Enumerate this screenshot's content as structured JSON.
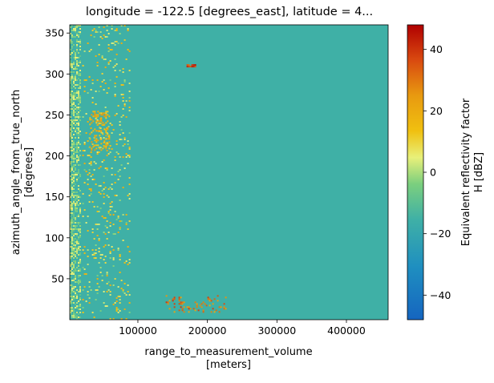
{
  "chart_data": {
    "type": "heatmap",
    "title": "longitude = -122.5 [degrees_east], latitude = 4...",
    "x_axis": {
      "label_lines": [
        "range_to_measurement_volume",
        "[meters]"
      ],
      "range": [
        2000,
        460000
      ],
      "ticks": [
        100000,
        200000,
        300000,
        400000
      ],
      "tick_labels": [
        "100000",
        "200000",
        "300000",
        "400000"
      ]
    },
    "y_axis": {
      "label_lines": [
        "azimuth_angle_from_true_north",
        "[degrees]"
      ],
      "range": [
        0,
        360
      ],
      "ticks": [
        50,
        100,
        150,
        200,
        250,
        300,
        350
      ],
      "tick_labels": [
        "50",
        "100",
        "150",
        "200",
        "250",
        "300",
        "350"
      ]
    },
    "colorbar": {
      "label_lines": [
        "Equivalent reflectivity factor",
        "H [dBZ]"
      ],
      "range": [
        -48,
        48
      ],
      "ticks": [
        -40,
        -20,
        0,
        20,
        40
      ],
      "tick_labels": [
        "−40",
        "−20",
        "0",
        "20",
        "40"
      ],
      "colormap": "jet-like (blue → teal → yellow → orange → red)"
    },
    "background_value_dbz": -35,
    "regions": [
      {
        "desc": "near-range clutter band",
        "x_range": [
          2000,
          20000
        ],
        "y_range": [
          0,
          360
        ],
        "typical_dbz": [
          -10,
          5
        ]
      },
      {
        "desc": "scattered echoes",
        "x_range": [
          20000,
          90000
        ],
        "y_range": [
          0,
          360
        ],
        "typical_dbz": [
          -5,
          20
        ]
      },
      {
        "desc": "strong cell near 200-250 deg",
        "x_range": [
          30000,
          60000
        ],
        "y_range": [
          205,
          255
        ],
        "typical_dbz": [
          10,
          25
        ]
      },
      {
        "desc": "precipitation band",
        "x_range": [
          140000,
          230000
        ],
        "y_range": [
          8,
          30
        ],
        "typical_dbz": [
          20,
          40
        ]
      },
      {
        "desc": "isolated echo",
        "x_range": [
          170000,
          185000
        ],
        "y_range": [
          307,
          312
        ],
        "typical_dbz": [
          30,
          45
        ]
      }
    ]
  }
}
